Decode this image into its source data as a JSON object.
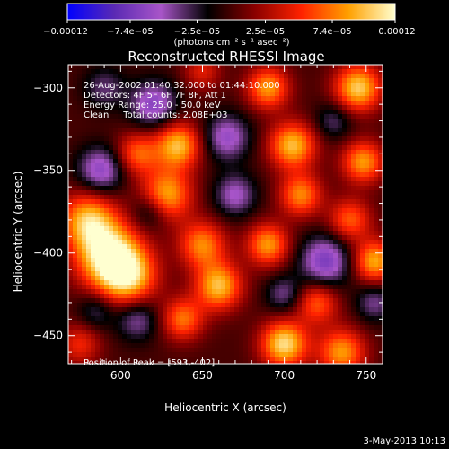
{
  "chart_data": {
    "type": "heatmap",
    "title": "Reconstructed RHESSI Image",
    "xlabel": "Heliocentric X (arcsec)",
    "ylabel": "Heliocentric Y (arcsec)",
    "xlim": [
      568,
      760
    ],
    "ylim": [
      -467,
      -286
    ],
    "x_ticks": [
      600,
      650,
      700,
      750
    ],
    "x_tick_labels": [
      "600",
      "650",
      "700",
      "750"
    ],
    "y_ticks": [
      -300,
      -350,
      -400,
      -450
    ],
    "y_tick_labels": [
      "−300",
      "−350",
      "−400",
      "−450"
    ],
    "colorbar": {
      "min": -0.00012,
      "max": 0.00012,
      "tick_labels": [
        "−0.00012",
        "−7.4e−05",
        "−2.5e−05",
        "2.5e−05",
        "7.4e−05",
        "0.00012"
      ],
      "tick_values": [
        -0.00012,
        -7.4e-05,
        -2.5e-05,
        2.5e-05,
        7.4e-05,
        0.00012
      ],
      "units_label": "(photons cm⁻² s⁻¹ asec⁻²)"
    },
    "annotations": [
      "26-Aug-2002 01:40:32.000 to 01:44:10.000",
      "Detectors: 4F 5F 6F 7F 8F, Att 1",
      "Energy Range: 25.0 - 50.0 keV",
      "Clean     Total counts: 2.08E+03"
    ],
    "peak_label": "Position of Peak = [593,-402]",
    "peak": [
      593,
      -402
    ],
    "colormap": [
      "#0000ff",
      "#5a2ab4",
      "#a855c8",
      "#000000",
      "#8a0000",
      "#ff2200",
      "#ffa000",
      "#ffffd0"
    ],
    "blobs": [
      {
        "x": 593,
        "y": -402,
        "v": 1.0,
        "s": 14
      },
      {
        "x": 580,
        "y": -380,
        "v": 0.75,
        "s": 12
      },
      {
        "x": 605,
        "y": -415,
        "v": 0.7,
        "s": 12
      },
      {
        "x": 628,
        "y": -365,
        "v": 0.75,
        "s": 11
      },
      {
        "x": 635,
        "y": -335,
        "v": 0.8,
        "s": 10
      },
      {
        "x": 610,
        "y": -340,
        "v": 0.55,
        "s": 9
      },
      {
        "x": 650,
        "y": -395,
        "v": 0.65,
        "s": 10
      },
      {
        "x": 660,
        "y": -420,
        "v": 0.8,
        "s": 10
      },
      {
        "x": 638,
        "y": -440,
        "v": 0.6,
        "s": 9
      },
      {
        "x": 700,
        "y": -455,
        "v": 0.9,
        "s": 10
      },
      {
        "x": 735,
        "y": -460,
        "v": 0.7,
        "s": 10
      },
      {
        "x": 720,
        "y": -430,
        "v": 0.55,
        "s": 9
      },
      {
        "x": 690,
        "y": -300,
        "v": 0.7,
        "s": 9
      },
      {
        "x": 705,
        "y": -335,
        "v": 0.8,
        "s": 10
      },
      {
        "x": 710,
        "y": -365,
        "v": 0.65,
        "s": 9
      },
      {
        "x": 690,
        "y": -395,
        "v": 0.7,
        "s": 9
      },
      {
        "x": 745,
        "y": -300,
        "v": 0.85,
        "s": 10
      },
      {
        "x": 748,
        "y": -345,
        "v": 0.7,
        "s": 9
      },
      {
        "x": 740,
        "y": -380,
        "v": 0.55,
        "s": 9
      },
      {
        "x": 755,
        "y": -405,
        "v": 0.75,
        "s": 9
      },
      {
        "x": 575,
        "y": -455,
        "v": 0.4,
        "s": 9
      },
      {
        "x": 650,
        "y": -290,
        "v": 0.35,
        "s": 8
      },
      {
        "x": 620,
        "y": -310,
        "v": -0.55,
        "s": 10
      },
      {
        "x": 665,
        "y": -330,
        "v": -0.5,
        "s": 10
      },
      {
        "x": 588,
        "y": -350,
        "v": -0.55,
        "s": 10
      },
      {
        "x": 670,
        "y": -365,
        "v": -0.45,
        "s": 9
      },
      {
        "x": 618,
        "y": -375,
        "v": -0.35,
        "s": 8
      },
      {
        "x": 725,
        "y": -405,
        "v": -0.6,
        "s": 11
      },
      {
        "x": 700,
        "y": -425,
        "v": -0.35,
        "s": 8
      },
      {
        "x": 610,
        "y": -440,
        "v": -0.4,
        "s": 9
      },
      {
        "x": 585,
        "y": -435,
        "v": -0.3,
        "s": 8
      },
      {
        "x": 755,
        "y": -430,
        "v": -0.35,
        "s": 8
      },
      {
        "x": 590,
        "y": -300,
        "v": -0.3,
        "s": 9
      },
      {
        "x": 730,
        "y": -320,
        "v": -0.3,
        "s": 8
      }
    ]
  },
  "footer": {
    "timestamp": "3-May-2013 10:13"
  }
}
